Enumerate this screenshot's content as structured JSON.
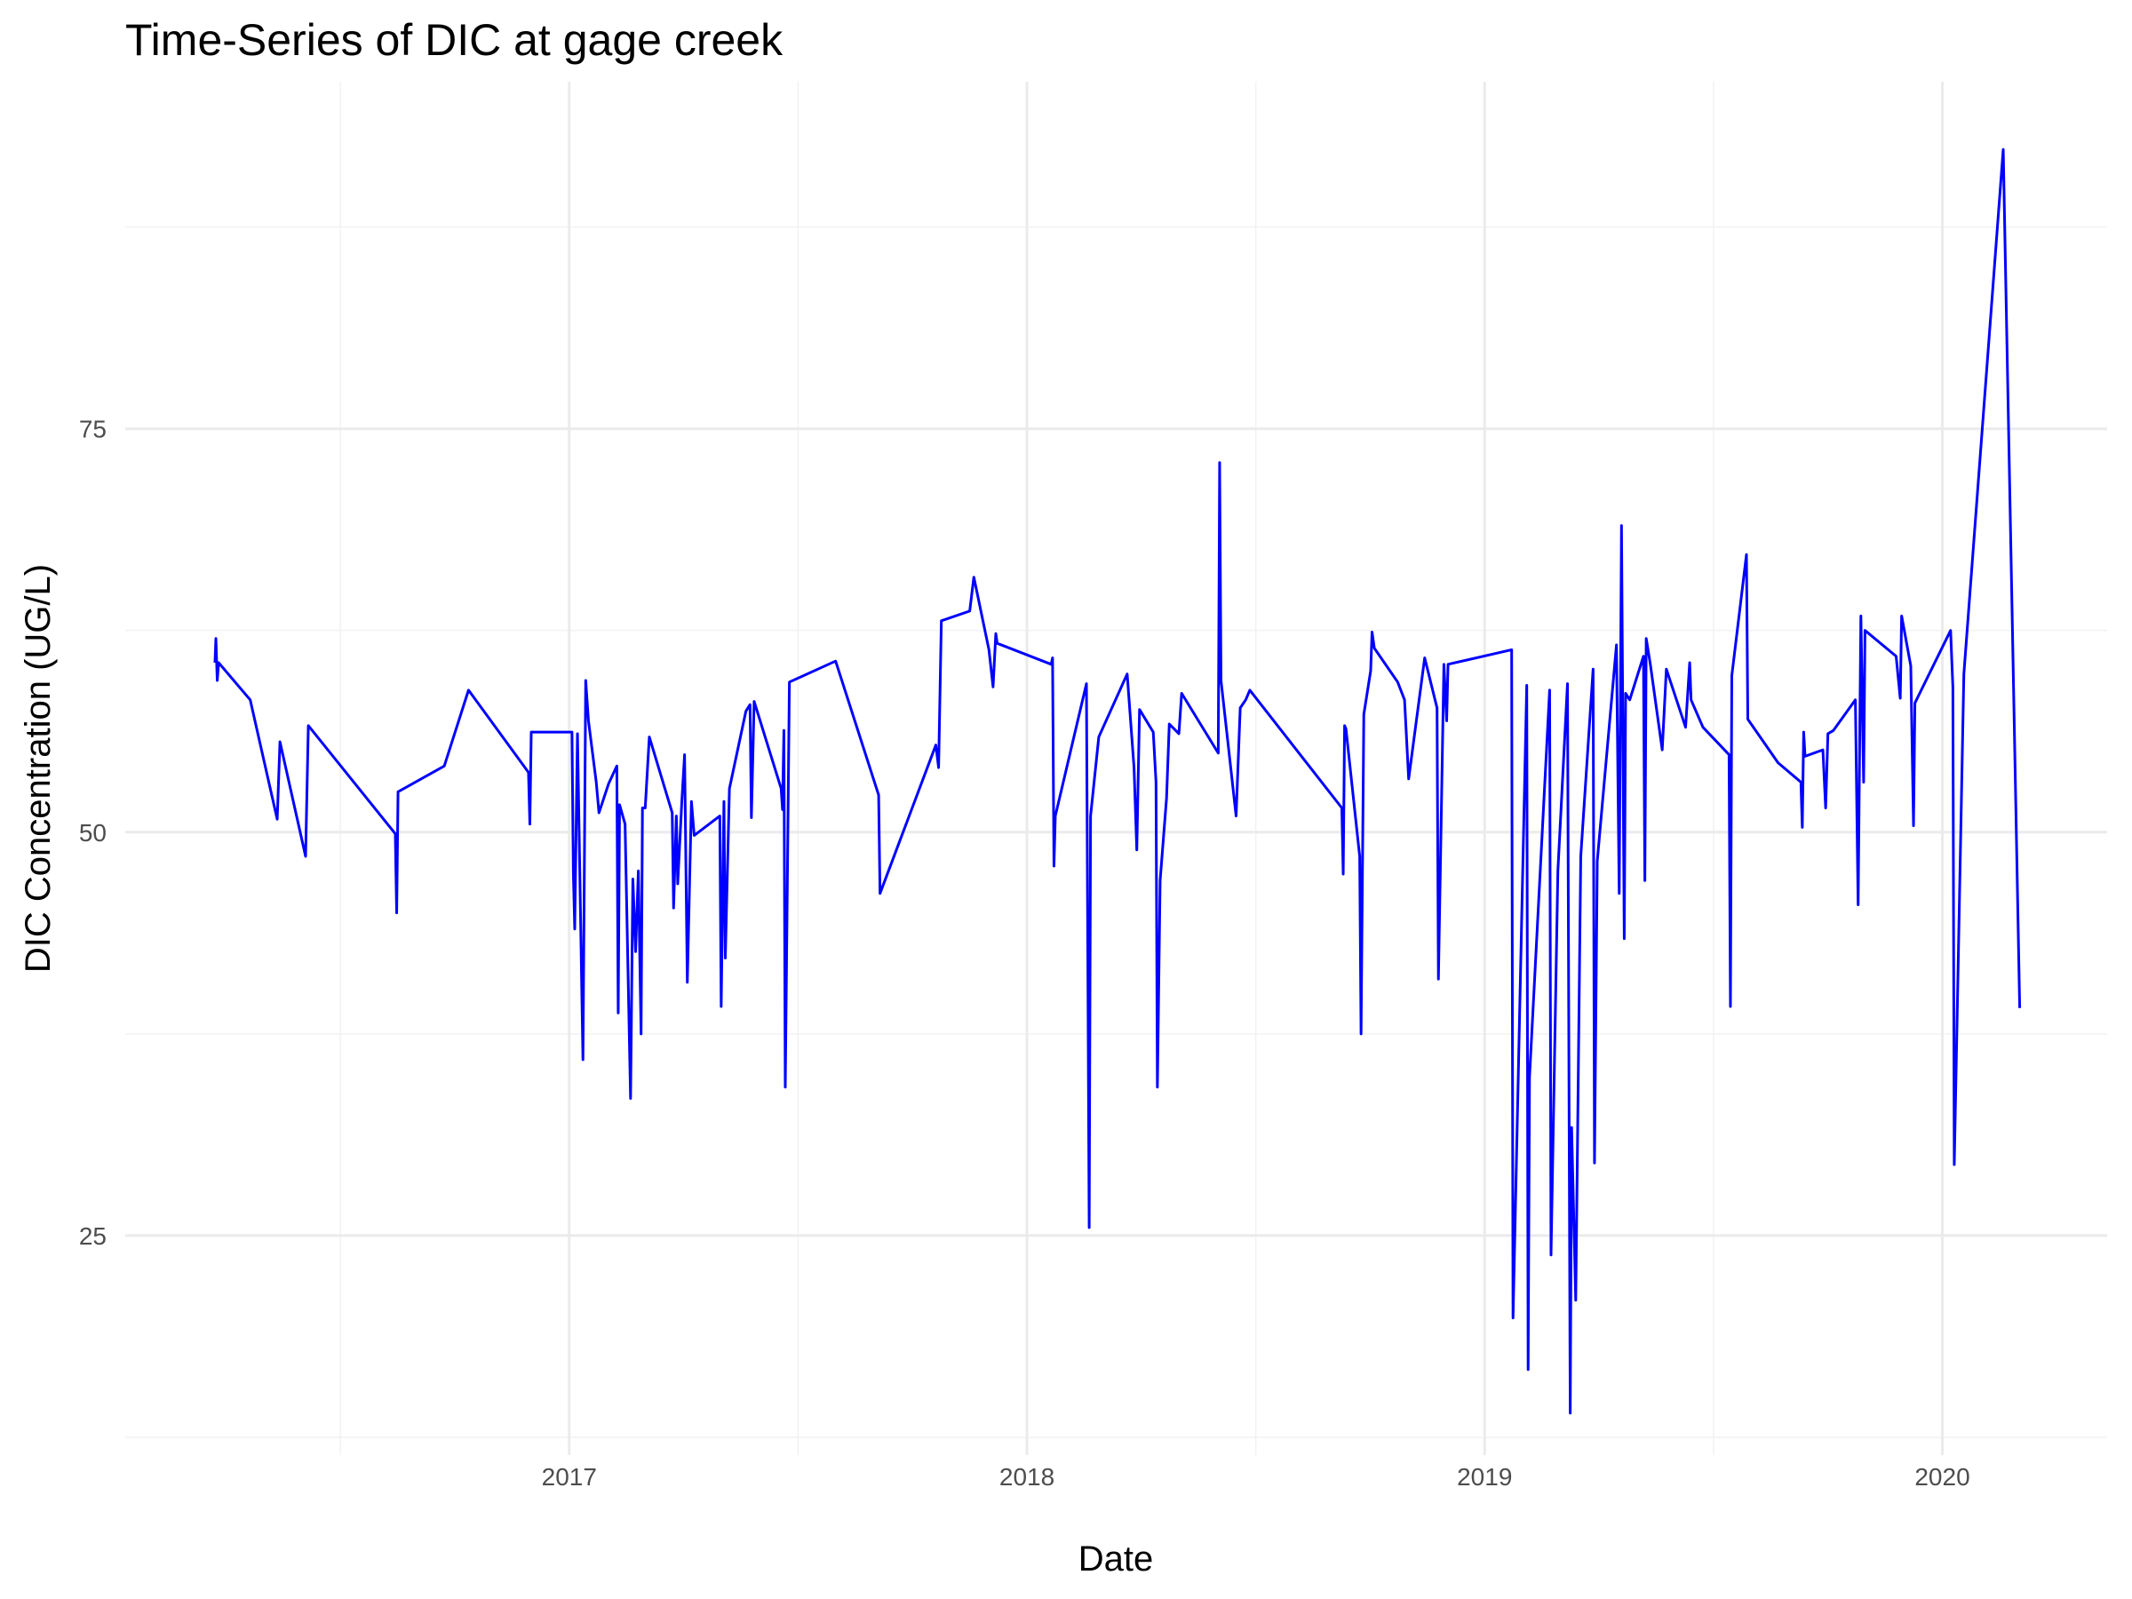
{
  "chart_data": {
    "type": "line",
    "title": "Time-Series of DIC at gage creek",
    "x_label": "Date",
    "y_label": "DIC Concentration (UG/L)",
    "color": "#0000ff",
    "grid": true,
    "xlim": [
      2016.03,
      2020.36
    ],
    "xticks": [
      2017,
      2018,
      2019,
      2020
    ],
    "ylim": [
      11.4,
      96.5
    ],
    "yticks": [
      25,
      50,
      75
    ],
    "x": [
      2016.226,
      2016.228,
      2016.231,
      2016.234,
      2016.303,
      2016.362,
      2016.368,
      2016.424,
      2016.43,
      2016.62,
      2016.623,
      2016.626,
      2016.727,
      2016.78,
      2016.911,
      2016.914,
      2016.917,
      2017.006,
      2017.009,
      2017.012,
      2017.018,
      2017.03,
      2017.036,
      2017.042,
      2017.059,
      2017.065,
      2017.086,
      2017.104,
      2017.107,
      2017.11,
      2017.122,
      2017.134,
      2017.139,
      2017.145,
      2017.151,
      2017.157,
      2017.16,
      2017.166,
      2017.175,
      2017.225,
      2017.228,
      2017.234,
      2017.237,
      2017.246,
      2017.252,
      2017.258,
      2017.267,
      2017.273,
      2017.329,
      2017.332,
      2017.338,
      2017.341,
      2017.35,
      2017.386,
      2017.395,
      2017.398,
      2017.404,
      2017.463,
      2017.466,
      2017.469,
      2017.472,
      2017.481,
      2017.582,
      2017.676,
      2017.679,
      2017.801,
      2017.807,
      2017.813,
      2017.875,
      2017.884,
      2017.917,
      2017.926,
      2017.932,
      2017.935,
      2018.053,
      2018.056,
      2018.059,
      2018.062,
      2018.13,
      2018.136,
      2018.139,
      2018.157,
      2018.219,
      2018.234,
      2018.24,
      2018.246,
      2018.276,
      2018.282,
      2018.285,
      2018.291,
      2018.305,
      2018.311,
      2018.332,
      2018.338,
      2018.418,
      2018.421,
      2018.424,
      2018.457,
      2018.466,
      2018.478,
      2018.487,
      2018.688,
      2018.691,
      2018.694,
      2018.697,
      2018.727,
      2018.73,
      2018.736,
      2018.751,
      2018.754,
      2018.759,
      2018.81,
      2018.825,
      2018.834,
      2018.869,
      2018.896,
      2018.899,
      2018.911,
      2018.917,
      2018.92,
      2019.059,
      2019.062,
      2019.092,
      2019.095,
      2019.098,
      2019.142,
      2019.145,
      2019.16,
      2019.181,
      2019.187,
      2019.19,
      2019.199,
      2019.21,
      2019.237,
      2019.24,
      2019.246,
      2019.288,
      2019.294,
      2019.299,
      2019.305,
      2019.308,
      2019.317,
      2019.347,
      2019.35,
      2019.353,
      2019.362,
      2019.388,
      2019.397,
      2019.439,
      2019.448,
      2019.451,
      2019.477,
      2019.534,
      2019.537,
      2019.54,
      2019.572,
      2019.575,
      2019.641,
      2019.691,
      2019.694,
      2019.697,
      2019.7,
      2019.739,
      2019.745,
      2019.75,
      2019.762,
      2019.81,
      2019.816,
      2019.822,
      2019.828,
      2019.831,
      2019.899,
      2019.908,
      2019.911,
      2019.931,
      2019.937,
      2019.94,
      2020.018,
      2020.023,
      2020.026,
      2020.047,
      2020.133,
      2020.169
    ],
    "values": [
      60.5,
      62.0,
      59.4,
      60.5,
      58.2,
      50.8,
      55.6,
      48.5,
      56.6,
      49.9,
      45.0,
      52.5,
      54.1,
      58.8,
      53.7,
      50.5,
      56.2,
      56.2,
      47.5,
      44.0,
      56.1,
      35.9,
      59.4,
      56.9,
      53.1,
      51.2,
      53.0,
      54.1,
      38.8,
      51.7,
      50.5,
      33.5,
      47.1,
      42.6,
      47.6,
      37.5,
      51.5,
      51.5,
      55.9,
      51.2,
      45.3,
      51.0,
      46.8,
      51.9,
      54.8,
      40.7,
      51.9,
      49.8,
      51.0,
      39.2,
      51.9,
      42.2,
      52.7,
      57.5,
      57.9,
      50.9,
      58.1,
      52.7,
      51.4,
      56.3,
      34.2,
      59.3,
      60.6,
      52.3,
      46.2,
      55.4,
      54.0,
      63.1,
      63.7,
      65.8,
      61.3,
      59.0,
      62.3,
      61.7,
      60.4,
      60.8,
      47.9,
      51.0,
      59.2,
      25.5,
      51.0,
      55.9,
      59.8,
      54.0,
      48.9,
      57.6,
      56.2,
      53.1,
      34.2,
      47.0,
      52.1,
      56.7,
      56.1,
      58.6,
      54.9,
      72.9,
      59.4,
      51.0,
      57.7,
      58.2,
      58.8,
      51.5,
      47.4,
      56.6,
      56.4,
      48.5,
      37.5,
      57.3,
      60.0,
      62.4,
      61.4,
      59.3,
      58.2,
      53.3,
      60.8,
      57.7,
      40.9,
      60.4,
      56.9,
      60.4,
      61.3,
      19.9,
      59.1,
      16.7,
      34.8,
      58.8,
      23.8,
      47.6,
      59.2,
      14.0,
      31.7,
      21.0,
      48.5,
      60.1,
      29.5,
      48.2,
      61.6,
      46.2,
      69.0,
      43.4,
      58.6,
      58.2,
      60.9,
      47.0,
      62.0,
      60.4,
      55.1,
      60.1,
      56.5,
      60.5,
      58.2,
      56.5,
      54.8,
      39.2,
      59.7,
      67.2,
      57.0,
      54.3,
      53.1,
      50.3,
      56.2,
      54.7,
      55.1,
      51.5,
      56.1,
      56.3,
      58.2,
      45.5,
      63.4,
      53.1,
      62.5,
      60.9,
      58.3,
      63.4,
      60.3,
      50.4,
      58.0,
      62.5,
      59.0,
      29.4,
      59.8,
      92.3,
      39.1
    ]
  }
}
